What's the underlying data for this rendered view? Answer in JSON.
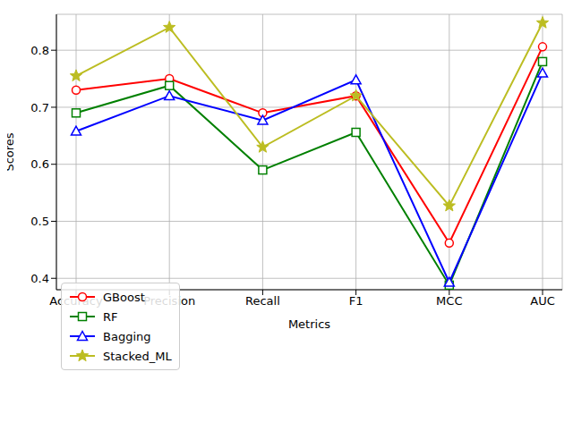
{
  "chart_data": {
    "type": "line",
    "x_label": "Metrics",
    "y_label": "Scores",
    "categories": [
      "Accuracy",
      "Precision",
      "Recall",
      "F1",
      "MCC",
      "AUC"
    ],
    "ylim": [
      0.38,
      0.863
    ],
    "yticks": [
      0.4,
      0.5,
      0.6,
      0.7,
      0.8
    ],
    "grid": true,
    "legend": "lower left",
    "series": [
      {
        "name": "GBoost",
        "color": "#ff0000",
        "marker": "circle",
        "values": [
          0.73,
          0.75,
          0.69,
          0.72,
          0.462,
          0.806
        ]
      },
      {
        "name": "RF",
        "color": "#008000",
        "marker": "square",
        "values": [
          0.69,
          0.738,
          0.59,
          0.656,
          0.388,
          0.78
        ]
      },
      {
        "name": "Bagging",
        "color": "#0000ff",
        "marker": "triangle",
        "values": [
          0.658,
          0.72,
          0.677,
          0.748,
          0.393,
          0.76
        ]
      },
      {
        "name": "Stacked_ML",
        "color": "#bcbd22",
        "marker": "star",
        "values": [
          0.755,
          0.84,
          0.63,
          0.72,
          0.527,
          0.848
        ]
      }
    ]
  }
}
